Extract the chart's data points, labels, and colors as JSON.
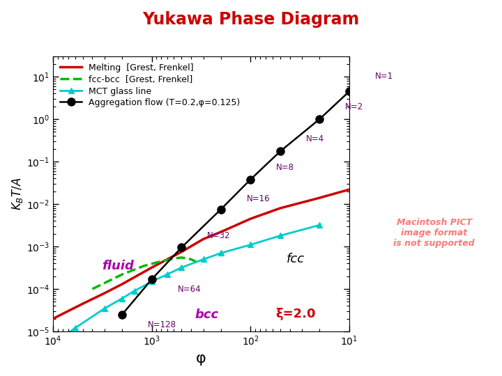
{
  "title": "Yukawa Phase Diagram",
  "title_color": "#cc0000",
  "xlabel": "φ",
  "ylabel": "$K_B T/A$",
  "xlim_left": 10000,
  "xlim_right": 10,
  "ylim": [
    1e-05,
    30
  ],
  "background_color": "#ffffff",
  "melting_x": [
    10000,
    5000,
    3000,
    2000,
    1000,
    500,
    300,
    200,
    100,
    50,
    20,
    10
  ],
  "melting_y": [
    2e-05,
    4.5e-05,
    8e-05,
    0.00013,
    0.00032,
    0.00075,
    0.0015,
    0.0022,
    0.0045,
    0.008,
    0.014,
    0.022
  ],
  "melting_color": "#cc0000",
  "melting_label": "Melting  [Grest, Frenkel]",
  "fcc_bcc_x": [
    4000,
    2000,
    1200,
    800,
    600,
    500,
    400,
    320
  ],
  "fcc_bcc_y": [
    0.0001,
    0.00022,
    0.00035,
    0.00045,
    0.00052,
    0.00055,
    0.0005,
    0.00038
  ],
  "fcc_bcc_color": "#00bb00",
  "fcc_bcc_label": "fcc-bcc  [Grest, Frenkel]",
  "mct_x": [
    10000,
    6000,
    3000,
    2000,
    1500,
    1000,
    700,
    500,
    300,
    200,
    100,
    50,
    20
  ],
  "mct_y": [
    5e-06,
    1.2e-05,
    3.5e-05,
    6e-05,
    9e-05,
    0.00015,
    0.00022,
    0.00032,
    0.0005,
    0.0007,
    0.0011,
    0.0018,
    0.0032
  ],
  "mct_color": "#00cccc",
  "mct_label": "MCT glass line",
  "agg_x": [
    10,
    20,
    50,
    100,
    200,
    500,
    1000,
    2000
  ],
  "agg_y": [
    4.5,
    1.0,
    0.175,
    0.038,
    0.0075,
    0.00095,
    0.00017,
    2.5e-05
  ],
  "agg_labels": [
    "N=1",
    "N=2",
    "N=4",
    "N=8",
    "N=16",
    "N=32",
    "N=64",
    "N=128"
  ],
  "agg_label_offsets_x": [
    0.55,
    0.55,
    0.55,
    0.55,
    0.55,
    0.55,
    0.55,
    0.55
  ],
  "agg_label_offsets_y": [
    1.8,
    1.5,
    1.5,
    1.5,
    1.4,
    1.5,
    0.45,
    0.45
  ],
  "agg_color": "#000000",
  "agg_label": "Aggregation flow (T=0.2,φ=0.125)",
  "fluid_label": "fluid",
  "fluid_x": 2200,
  "fluid_y": 0.00035,
  "fluid_color": "#aa00aa",
  "fcc_label": "fcc",
  "fcc_x": 35,
  "fcc_y": 0.0005,
  "fcc_color": "#000000",
  "bcc_label": "bcc",
  "bcc_x": 280,
  "bcc_y": 2.5e-05,
  "bcc_color": "#aa00aa",
  "xi_label": "ξ=2.0",
  "xi_x": 22,
  "xi_y": 1.8e-05,
  "xi_color": "#cc0000",
  "macintosh_text": "Macintosh PICT\nimage format\nis not supported",
  "macintosh_color": "#ff7777",
  "macintosh_x": 0.865,
  "macintosh_y": 0.38
}
